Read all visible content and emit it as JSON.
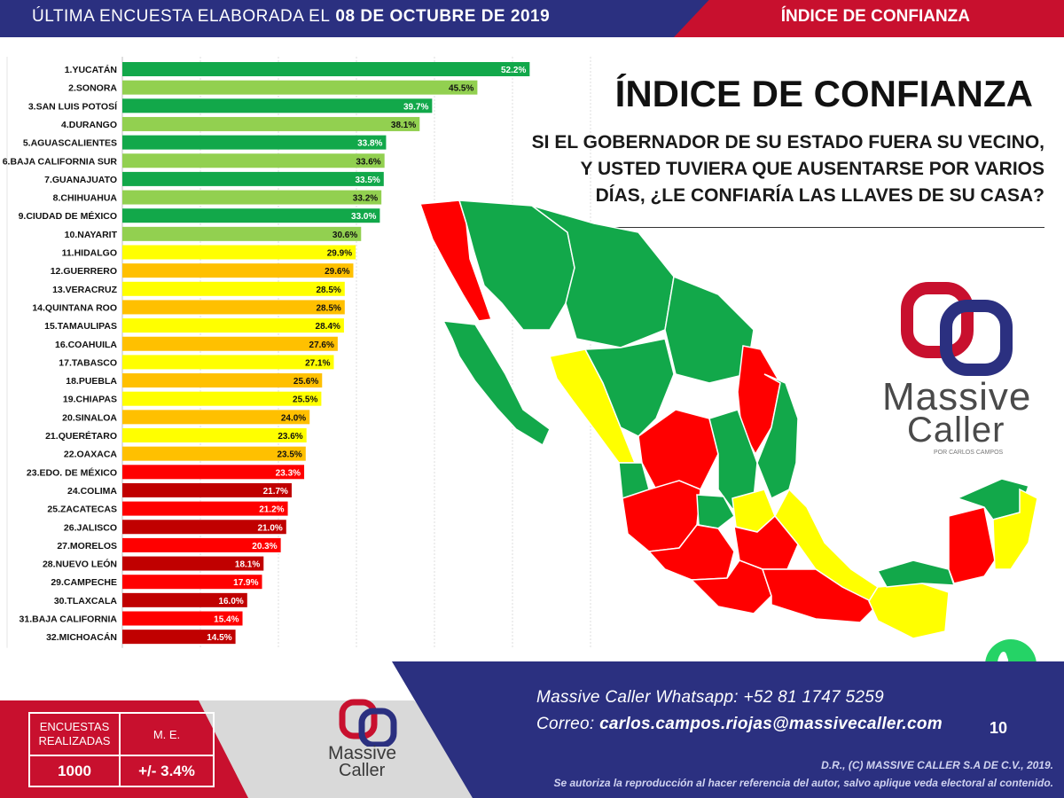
{
  "header": {
    "survey_label": "ÚLTIMA ENCUESTA ELABORADA EL",
    "survey_date": "08 DE OCTUBRE DE 2019",
    "section": "ÍNDICE DE CONFIANZA"
  },
  "title": {
    "main": "ÍNDICE DE CONFIANZA",
    "question_lines": [
      "SI EL GOBERNADOR DE SU ESTADO FUERA SU VECINO,",
      "Y USTED TUVIERA QUE AUSENTARSE POR VARIOS",
      "DÍAS, ¿LE CONFIARÍA LAS LLAVES DE SU CASA?"
    ]
  },
  "colors": {
    "dark_green": "#12a84a",
    "light_green": "#92d050",
    "yellow": "#ffff00",
    "orange": "#ffc000",
    "red": "#ff0000",
    "dark_red": "#c00000",
    "navy": "#2b3080",
    "brand_red": "#c8102e"
  },
  "chart_data": {
    "type": "bar",
    "orientation": "horizontal",
    "categories": [
      "1.YUCATÁN",
      "2.SONORA",
      "3.SAN LUIS POTOSÍ",
      "4.DURANGO",
      "5.AGUASCALIENTES",
      "6.BAJA CALIFORNIA SUR",
      "7.GUANAJUATO",
      "8.CHIHUAHUA",
      "9.CIUDAD DE MÉXICO",
      "10.NAYARIT",
      "11.HIDALGO",
      "12.GUERRERO",
      "13.VERACRUZ",
      "14.QUINTANA ROO",
      "15.TAMAULIPAS",
      "16.COAHUILA",
      "17.TABASCO",
      "18.PUEBLA",
      "19.CHIAPAS",
      "20.SINALOA",
      "21.QUERÉTARO",
      "22.OAXACA",
      "23.EDO. DE MÉXICO",
      "24.COLIMA",
      "25.ZACATECAS",
      "26.JALISCO",
      "27.MORELOS",
      "28.NUEVO LEÓN",
      "29.CAMPECHE",
      "30.TLAXCALA",
      "31.BAJA CALIFORNIA",
      "32.MICHOACÁN"
    ],
    "values": [
      52.2,
      45.5,
      39.7,
      38.1,
      33.8,
      33.6,
      33.5,
      33.2,
      33.0,
      30.6,
      29.9,
      29.6,
      28.5,
      28.5,
      28.4,
      27.6,
      27.1,
      25.6,
      25.5,
      24.0,
      23.6,
      23.5,
      23.3,
      21.7,
      21.2,
      21.0,
      20.3,
      18.1,
      17.9,
      16.0,
      15.4,
      14.5
    ],
    "data_labels": [
      "52.2%",
      "45.5%",
      "39.7%",
      "38.1%",
      "33.8%",
      "33.6%",
      "33.5%",
      "33.2%",
      "33.0%",
      "30.6%",
      "29.9%",
      "29.6%",
      "28.5%",
      "28.5%",
      "28.4%",
      "27.6%",
      "27.1%",
      "25.6%",
      "25.5%",
      "24.0%",
      "23.6%",
      "23.5%",
      "23.3%",
      "21.7%",
      "21.2%",
      "21.0%",
      "20.3%",
      "18.1%",
      "17.9%",
      "16.0%",
      "15.4%",
      "14.5%"
    ],
    "bar_colors": [
      "#12a84a",
      "#92d050",
      "#12a84a",
      "#92d050",
      "#12a84a",
      "#92d050",
      "#12a84a",
      "#92d050",
      "#12a84a",
      "#92d050",
      "#ffff00",
      "#ffc000",
      "#ffff00",
      "#ffc000",
      "#ffff00",
      "#ffc000",
      "#ffff00",
      "#ffc000",
      "#ffff00",
      "#ffc000",
      "#ffff00",
      "#ffc000",
      "#ff0000",
      "#c00000",
      "#ff0000",
      "#c00000",
      "#ff0000",
      "#c00000",
      "#ff0000",
      "#c00000",
      "#ff0000",
      "#c00000"
    ],
    "xlim": [
      0,
      60
    ],
    "grid": true
  },
  "logo": {
    "line1": "Massive",
    "line2": "Caller",
    "sub": "POR CARLOS CAMPOS"
  },
  "stats": {
    "surveys_label": "ENCUESTAS REALIZADAS",
    "surveys_value": "1000",
    "me_label": "M. E.",
    "me_value": "+/- 3.4%"
  },
  "footer": {
    "whatsapp": "Massive Caller Whatsapp: +52   81 1747 5259",
    "email_label": "Correo:",
    "email": "carlos.campos.riojas@massivecaller.com",
    "page": "10",
    "copyright": "D.R., (C) MASSIVE CALLER S.A DE C.V., 2019.",
    "notice": "Se autoriza la reproducción al hacer referencia del autor, salvo aplique veda electoral al contenido."
  }
}
